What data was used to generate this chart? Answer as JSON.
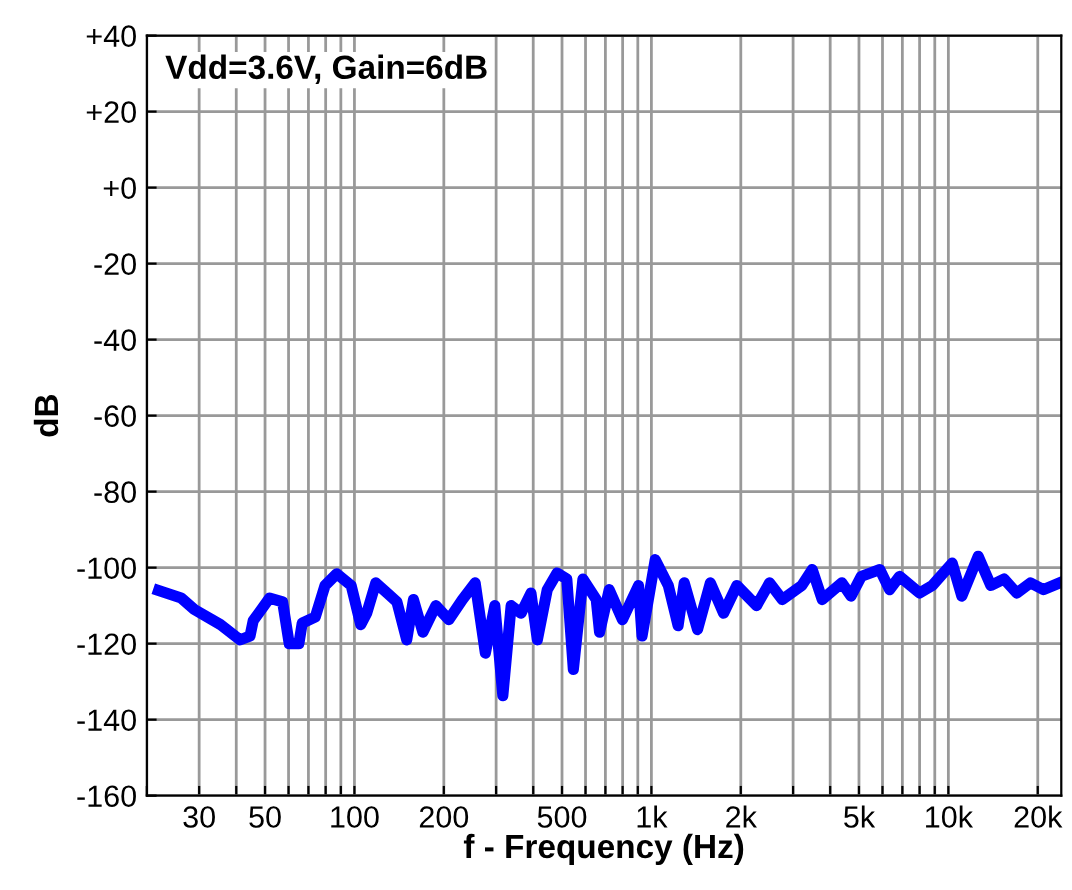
{
  "chart_data": {
    "type": "line",
    "xlabel": "f - Frequency (Hz)",
    "ylabel": "dB",
    "annotations": [
      "Vdd=3.6V, Gain=6dB"
    ],
    "log": "x",
    "grid": true,
    "marker": "none",
    "line_style": "solid",
    "xlim": [
      20,
      24000
    ],
    "ylim": [
      -160,
      40
    ],
    "xticks": [
      {
        "value": 20,
        "label": null
      },
      30,
      {
        "value": 40,
        "label": null
      },
      50,
      {
        "value": 60,
        "label": null
      },
      {
        "value": 70,
        "label": null
      },
      {
        "value": 80,
        "label": null
      },
      {
        "value": 90,
        "label": null
      },
      100,
      200,
      {
        "value": 300,
        "label": null
      },
      {
        "value": 400,
        "label": null
      },
      500,
      {
        "value": 600,
        "label": null
      },
      {
        "value": 700,
        "label": null
      },
      {
        "value": 800,
        "label": null
      },
      {
        "value": 900,
        "label": null
      },
      {
        "value": 1000,
        "label": "1k"
      },
      {
        "value": 2000,
        "label": "2k"
      },
      {
        "value": 3000,
        "label": null
      },
      {
        "value": 4000,
        "label": null
      },
      {
        "value": 5000,
        "label": "5k"
      },
      {
        "value": 6000,
        "label": null
      },
      {
        "value": 7000,
        "label": null
      },
      {
        "value": 8000,
        "label": null
      },
      {
        "value": 9000,
        "label": null
      },
      {
        "value": 10000,
        "label": "10k"
      },
      {
        "value": 20000,
        "label": "20k"
      }
    ],
    "yticks": [
      {
        "value": 40,
        "label": "+40"
      },
      {
        "value": 20,
        "label": "+20"
      },
      {
        "value": 0,
        "label": "+0"
      },
      -20,
      -40,
      -60,
      -80,
      -100,
      -120,
      -140,
      -160
    ],
    "series": [
      {
        "color": "#0000ff",
        "x": [
          21.9,
          26.1,
          28.9,
          35.4,
          41.2,
          44.5,
          45.6,
          51.8,
          57.3,
          60.3,
          65,
          66.7,
          73.8,
          79.6,
          87.2,
          97.5,
          105,
          110,
          118,
          129,
          139,
          150,
          158,
          170,
          188,
          208,
          231,
          255,
          276,
          297,
          316,
          337,
          364,
          393,
          413,
          446,
          481,
          519,
          546,
          588,
          652,
          669,
          721,
          799,
          905,
          930,
          1030,
          1140,
          1230,
          1290,
          1430,
          1580,
          1750,
          1940,
          2260,
          2500,
          2760,
          3210,
          3480,
          3760,
          4380,
          4700,
          5090,
          5880,
          6340,
          6850,
          8000,
          8830,
          10300,
          11100,
          12600,
          13900,
          15400,
          17000,
          18900,
          20900,
          23700
        ],
        "values": [
          -106,
          -108,
          -111,
          -115,
          -119,
          -118,
          -114,
          -108,
          -109,
          -120,
          -120,
          -114.6,
          -113,
          -104.7,
          -101.6,
          -104.7,
          -115,
          -112,
          -104,
          -106.7,
          -109,
          -119,
          -108.4,
          -117,
          -110,
          -113.7,
          -108.4,
          -104,
          -122.5,
          -110,
          -133.7,
          -110,
          -112,
          -106.7,
          -119,
          -105.8,
          -101.4,
          -103,
          -126.8,
          -103,
          -108.4,
          -117,
          -105.8,
          -113.7,
          -104.7,
          -118,
          -97.9,
          -104.7,
          -115.3,
          -104,
          -116.3,
          -104,
          -112,
          -104.7,
          -110,
          -104,
          -108.4,
          -104.7,
          -100.5,
          -108.4,
          -104,
          -107.5,
          -102.3,
          -100.5,
          -105.8,
          -102.3,
          -106.7,
          -104.7,
          -98.8,
          -107.5,
          -97,
          -104.7,
          -103,
          -106.7,
          -104,
          -105.8,
          -104
        ]
      }
    ]
  }
}
